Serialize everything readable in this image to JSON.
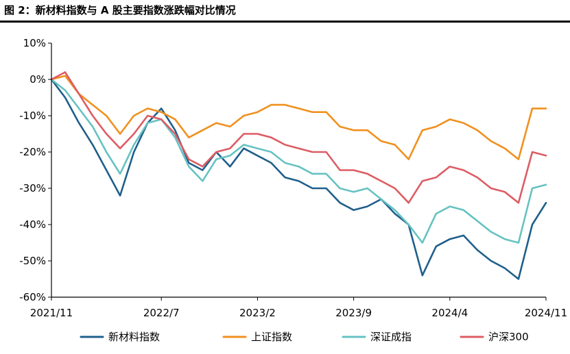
{
  "figure_title": "图 2：新材料指数与 A 股主要指数涨跌幅对比情况",
  "colors": {
    "新材料指数": "#1f5f8b",
    "上证指数": "#f0901e",
    "深证成指": "#66c2c2",
    "沪深300": "#dd5c63"
  },
  "chart_data": {
    "type": "line",
    "title": "图 2：新材料指数与 A 股主要指数涨跌幅对比情况",
    "xlabel": "",
    "ylabel": "",
    "x_tick_labels": [
      "2021/11",
      "2022/7",
      "2023/2",
      "2023/9",
      "2024/4",
      "2024/11"
    ],
    "y_tick_labels": [
      "10%",
      "0%",
      "-10%",
      "-20%",
      "-30%",
      "-40%",
      "-50%",
      "-60%"
    ],
    "ylim": [
      -60,
      10
    ],
    "y_unit": "%",
    "grid": false,
    "legend_position": "bottom",
    "series": [
      {
        "name": "新材料指数",
        "x": [
          "2021/11",
          "2021/12",
          "2022/1",
          "2022/2",
          "2022/3",
          "2022/4",
          "2022/5",
          "2022/6",
          "2022/7",
          "2022/8",
          "2022/9",
          "2022/10",
          "2022/11",
          "2022/12",
          "2023/1",
          "2023/2",
          "2023/3",
          "2023/4",
          "2023/5",
          "2023/6",
          "2023/7",
          "2023/8",
          "2023/9",
          "2023/10",
          "2023/11",
          "2023/12",
          "2024/1",
          "2024/2",
          "2024/3",
          "2024/4",
          "2024/5",
          "2024/6",
          "2024/7",
          "2024/8",
          "2024/9",
          "2024/10",
          "2024/11"
        ],
        "values": [
          0,
          -5,
          -12,
          -18,
          -25,
          -32,
          -20,
          -12,
          -8,
          -14,
          -23,
          -25,
          -20,
          -24,
          -19,
          -21,
          -23,
          -27,
          -28,
          -30,
          -30,
          -34,
          -36,
          -35,
          -33,
          -37,
          -40,
          -54,
          -46,
          -44,
          -43,
          -47,
          -50,
          -52,
          -55,
          -40,
          -34
        ]
      },
      {
        "name": "上证指数",
        "x": [
          "2021/11",
          "2021/12",
          "2022/1",
          "2022/2",
          "2022/3",
          "2022/4",
          "2022/5",
          "2022/6",
          "2022/7",
          "2022/8",
          "2022/9",
          "2022/10",
          "2022/11",
          "2022/12",
          "2023/1",
          "2023/2",
          "2023/3",
          "2023/4",
          "2023/5",
          "2023/6",
          "2023/7",
          "2023/8",
          "2023/9",
          "2023/10",
          "2023/11",
          "2023/12",
          "2024/1",
          "2024/2",
          "2024/3",
          "2024/4",
          "2024/5",
          "2024/6",
          "2024/7",
          "2024/8",
          "2024/9",
          "2024/10",
          "2024/11"
        ],
        "values": [
          0,
          1,
          -4,
          -7,
          -10,
          -15,
          -10,
          -8,
          -9,
          -11,
          -16,
          -14,
          -12,
          -13,
          -10,
          -9,
          -7,
          -7,
          -8,
          -9,
          -9,
          -13,
          -14,
          -14,
          -17,
          -18,
          -22,
          -14,
          -13,
          -11,
          -12,
          -14,
          -17,
          -19,
          -22,
          -8,
          -8
        ]
      },
      {
        "name": "深证成指",
        "x": [
          "2021/11",
          "2021/12",
          "2022/1",
          "2022/2",
          "2022/3",
          "2022/4",
          "2022/5",
          "2022/6",
          "2022/7",
          "2022/8",
          "2022/9",
          "2022/10",
          "2022/11",
          "2022/12",
          "2023/1",
          "2023/2",
          "2023/3",
          "2023/4",
          "2023/5",
          "2023/6",
          "2023/7",
          "2023/8",
          "2023/9",
          "2023/10",
          "2023/11",
          "2023/12",
          "2024/1",
          "2024/2",
          "2024/3",
          "2024/4",
          "2024/5",
          "2024/6",
          "2024/7",
          "2024/8",
          "2024/9",
          "2024/10",
          "2024/11"
        ],
        "values": [
          0,
          -3,
          -8,
          -13,
          -20,
          -26,
          -18,
          -12,
          -11,
          -16,
          -24,
          -28,
          -22,
          -21,
          -18,
          -19,
          -20,
          -23,
          -24,
          -26,
          -26,
          -30,
          -31,
          -30,
          -33,
          -36,
          -40,
          -45,
          -37,
          -35,
          -36,
          -39,
          -42,
          -44,
          -45,
          -30,
          -29
        ]
      },
      {
        "name": "沪深300",
        "x": [
          "2021/11",
          "2021/12",
          "2022/1",
          "2022/2",
          "2022/3",
          "2022/4",
          "2022/5",
          "2022/6",
          "2022/7",
          "2022/8",
          "2022/9",
          "2022/10",
          "2022/11",
          "2022/12",
          "2023/1",
          "2023/2",
          "2023/3",
          "2023/4",
          "2023/5",
          "2023/6",
          "2023/7",
          "2023/8",
          "2023/9",
          "2023/10",
          "2023/11",
          "2023/12",
          "2024/1",
          "2024/2",
          "2024/3",
          "2024/4",
          "2024/5",
          "2024/6",
          "2024/7",
          "2024/8",
          "2024/9",
          "2024/10",
          "2024/11"
        ],
        "values": [
          0,
          2,
          -4,
          -10,
          -15,
          -19,
          -15,
          -10,
          -11,
          -15,
          -22,
          -24,
          -20,
          -19,
          -15,
          -15,
          -16,
          -18,
          -19,
          -20,
          -20,
          -25,
          -25,
          -26,
          -28,
          -30,
          -34,
          -28,
          -27,
          -24,
          -25,
          -27,
          -30,
          -31,
          -34,
          -20,
          -21
        ]
      }
    ]
  }
}
